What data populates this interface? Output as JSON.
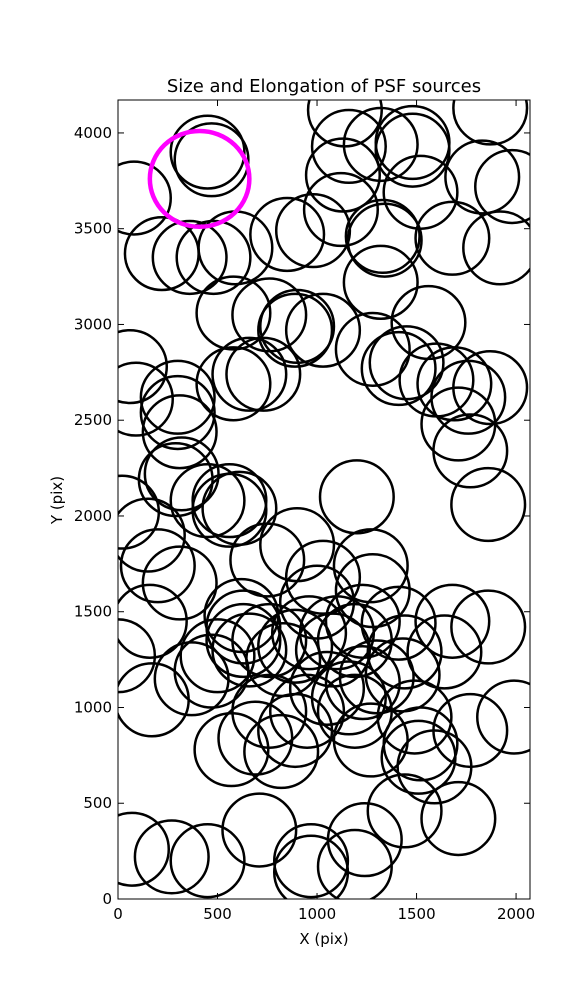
{
  "chart_data": {
    "type": "scatter",
    "title": "Size and Elongation of PSF sources",
    "xlabel": "X (pix)",
    "ylabel": "Y (pix)",
    "xlim": [
      0,
      2070
    ],
    "ylim": [
      0,
      4172
    ],
    "xticks": [
      0,
      500,
      1000,
      1500,
      2000
    ],
    "yticks": [
      0,
      500,
      1000,
      1500,
      2000,
      2500,
      3000,
      3500,
      4000
    ],
    "marker": "ellipse",
    "marker_radius": [
      185,
      190
    ],
    "color": "#000000",
    "x": [
      80,
      450,
      470,
      220,
      360,
      480,
      590,
      850,
      1120,
      980,
      1130,
      1160,
      1320,
      1480,
      1480,
      1520,
      1680,
      1830,
      1980,
      1920,
      1330,
      1340,
      1320,
      1560,
      1870,
      1280,
      1450,
      1410,
      1600,
      1690,
      1760,
      1710,
      1770,
      1860,
      1200,
      580,
      760,
      900,
      890,
      1030,
      580,
      300,
      300,
      60,
      90,
      310,
      730,
      660,
      320,
      450,
      560,
      560,
      610,
      290,
      20,
      150,
      200,
      310,
      750,
      900,
      1030,
      1270,
      1280,
      1000,
      960,
      620,
      630,
      630,
      660,
      760,
      500,
      370,
      160,
      0,
      170,
      470,
      830,
      890,
      1080,
      1100,
      1190,
      1300,
      1050,
      950,
      760,
      690,
      820,
      890,
      1160,
      1190,
      1270,
      1490,
      1520,
      1510,
      1590,
      1770,
      710,
      570,
      970,
      970,
      1190,
      1240,
      1440,
      1710,
      270,
      450,
      70,
      1990,
      1860,
      1680,
      1640,
      1440,
      1430,
      1230,
      1230,
      1410,
      1870,
      1140
    ],
    "y": [
      3660,
      3900,
      3860,
      3370,
      3350,
      3350,
      3400,
      3470,
      3600,
      3490,
      3780,
      3930,
      3940,
      3950,
      3910,
      3690,
      3450,
      3770,
      3720,
      3400,
      3460,
      3440,
      3220,
      3010,
      2670,
      2870,
      2800,
      2770,
      2710,
      2690,
      2620,
      2480,
      2340,
      2060,
      2100,
      3060,
      3050,
      2990,
      2970,
      2970,
      2690,
      2620,
      2540,
      2780,
      2610,
      2440,
      2740,
      2740,
      2220,
      2080,
      2080,
      2030,
      2040,
      2190,
      2020,
      1900,
      1740,
      1650,
      1770,
      1850,
      1680,
      1740,
      1610,
      1550,
      1390,
      1480,
      1420,
      1350,
      1300,
      1350,
      1270,
      1150,
      1450,
      1270,
      1040,
      1190,
      1250,
      1320,
      1300,
      1390,
      1350,
      1160,
      1100,
      980,
      980,
      840,
      770,
      880,
      1050,
      980,
      830,
      950,
      810,
      740,
      690,
      880,
      360,
      780,
      200,
      140,
      170,
      310,
      460,
      420,
      220,
      200,
      260,
      950,
      1420,
      1450,
      1290,
      1290,
      1170,
      1130,
      1450,
      1440,
      4130,
      4120
    ],
    "highlight": {
      "x": 410,
      "y": 3760,
      "radius": [
        250,
        250
      ],
      "color": "#ff00ff"
    }
  }
}
